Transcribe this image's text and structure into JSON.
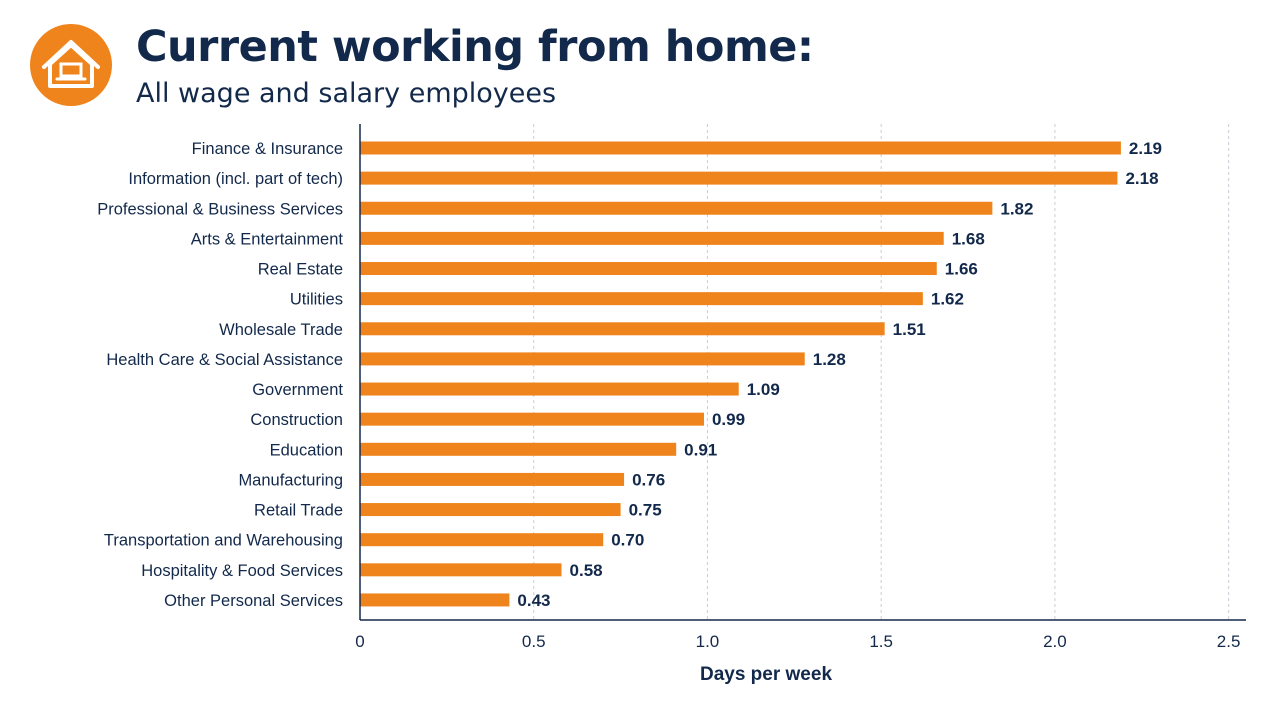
{
  "header": {
    "title": "Current working from home:",
    "subtitle": "All wage and salary employees",
    "icon": "house-laptop-icon",
    "accent_color": "#f0841c",
    "text_color": "#13294b"
  },
  "chart_data": {
    "type": "bar",
    "orientation": "horizontal",
    "categories": [
      "Finance & Insurance",
      "Information (incl. part of tech)",
      "Professional & Business Services",
      "Arts & Entertainment",
      "Real Estate",
      "Utilities",
      "Wholesale Trade",
      "Health Care & Social Assistance",
      "Government",
      "Construction",
      "Education",
      "Manufacturing",
      "Retail Trade",
      "Transportation and Warehousing",
      "Hospitality & Food Services",
      "Other Personal Services"
    ],
    "values": [
      2.19,
      2.18,
      1.82,
      1.68,
      1.66,
      1.62,
      1.51,
      1.28,
      1.09,
      0.99,
      0.91,
      0.76,
      0.75,
      0.7,
      0.58,
      0.43
    ],
    "value_labels": [
      "2.19",
      "2.18",
      "1.82",
      "1.68",
      "1.66",
      "1.62",
      "1.51",
      "1.28",
      "1.09",
      "0.99",
      "0.91",
      "0.76",
      "0.75",
      "0.70",
      "0.58",
      "0.43"
    ],
    "xlabel": "Days per week",
    "ylabel": "",
    "xlim": [
      0,
      2.55
    ],
    "xticks": [
      0,
      0.5,
      1.0,
      1.5,
      2.0,
      2.5
    ],
    "xtick_labels": [
      "0",
      "0.5",
      "1.0",
      "1.5",
      "2.0",
      "2.5"
    ],
    "grid": "vertical dashed",
    "bar_color": "#f0841c",
    "legend": "none"
  }
}
